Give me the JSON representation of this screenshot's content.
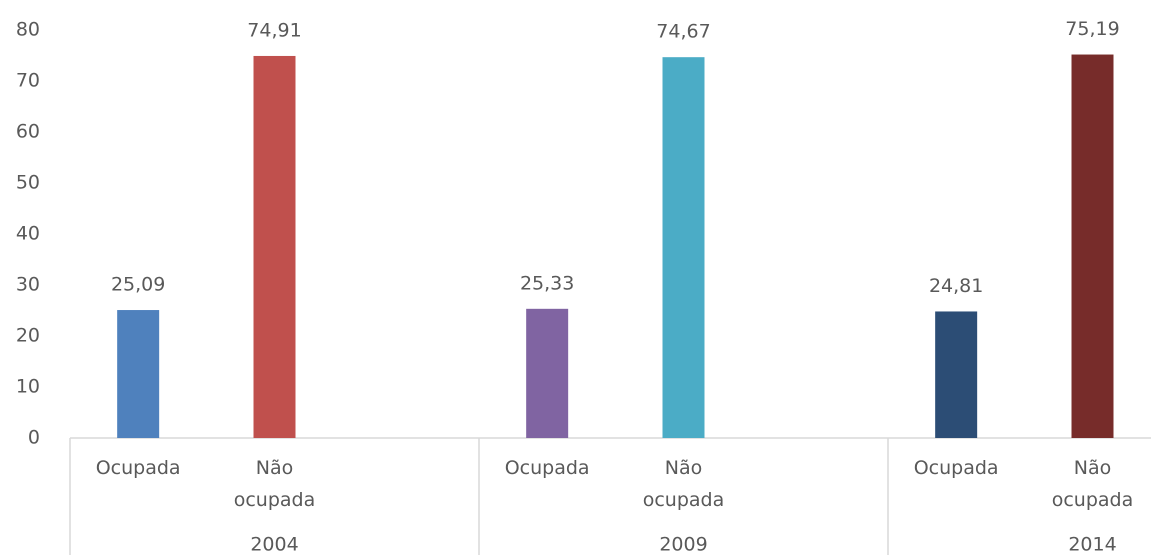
{
  "chart_data": {
    "type": "bar",
    "ylim": [
      0,
      80
    ],
    "yticks": [
      0,
      10,
      20,
      30,
      40,
      50,
      60,
      70,
      80
    ],
    "groups": [
      {
        "name": "2004",
        "categories": [
          "Ocupada",
          "Não ocupada"
        ],
        "values": [
          25.09,
          74.91
        ],
        "value_labels": [
          "25,09",
          "74,91"
        ],
        "colors": [
          "#4f81bd",
          "#c0504d"
        ]
      },
      {
        "name": "2009",
        "categories": [
          "Ocupada",
          "Não ocupada"
        ],
        "values": [
          25.33,
          74.67
        ],
        "value_labels": [
          "25,33",
          "74,67"
        ],
        "colors": [
          "#8064a2",
          "#4bacc6"
        ]
      },
      {
        "name": "2014",
        "categories": [
          "Ocupada",
          "Não ocupada"
        ],
        "values": [
          24.81,
          75.19
        ],
        "value_labels": [
          "24,81",
          "75,19"
        ],
        "colors": [
          "#2c4d75",
          "#772c2a"
        ]
      }
    ]
  }
}
